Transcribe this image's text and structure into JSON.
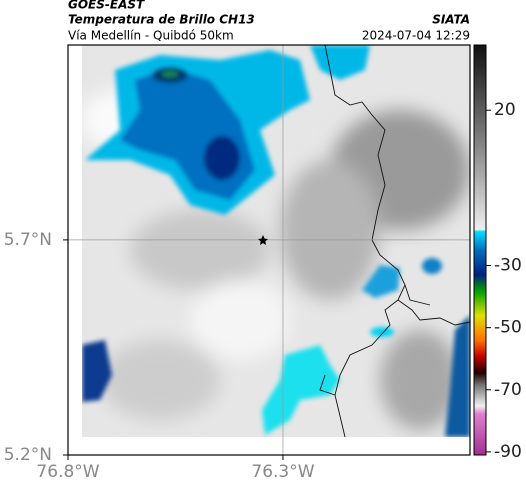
{
  "header": {
    "title": "GOES-EAST",
    "subtitle": "Temperatura de Brillo CH13",
    "source": "SIATA",
    "region": "Vía Medellín - Quibdó 50km",
    "date": "2024-07-04 12:29"
  },
  "map": {
    "xlim": [
      -76.8,
      -75.865
    ],
    "ylim": [
      5.2,
      6.153
    ],
    "xticks": [
      {
        "value": -76.8,
        "label": "76.8°W"
      },
      {
        "value": -76.3,
        "label": "76.3°W"
      }
    ],
    "yticks": [
      {
        "value": 5.2,
        "label": "5.2°N"
      },
      {
        "value": 5.7,
        "label": "5.7°N"
      }
    ]
  },
  "colorbar": {
    "lim": [
      41,
      -91
    ],
    "ticks": [
      20,
      -30,
      -50,
      -70,
      -90
    ]
  }
}
